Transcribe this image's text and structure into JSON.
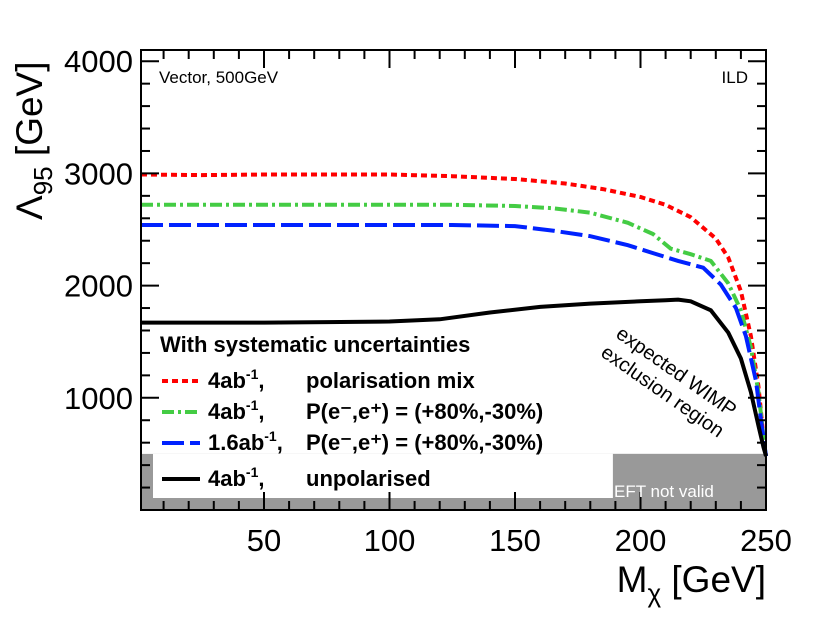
{
  "chart_data": {
    "type": "line",
    "title": "",
    "xlabel": "Mχ [GeV]",
    "ylabel": "Λ95 [GeV]",
    "xlabel_parts": {
      "main": "M",
      "sub": "χ",
      "unit": " [GeV]"
    },
    "ylabel_parts": {
      "main": "Λ",
      "sub": "95",
      "unit": " [GeV]"
    },
    "xlim": [
      1,
      250
    ],
    "ylim": [
      0,
      4100
    ],
    "xticks": [
      50,
      100,
      150,
      200,
      250
    ],
    "yticks": [
      1000,
      2000,
      3000,
      4000
    ],
    "xtick_labels": [
      "50",
      "100",
      "150",
      "200",
      "250"
    ],
    "ytick_labels": [
      "1000",
      "2000",
      "3000",
      "4000"
    ],
    "annotations": {
      "top_left": "Vector, 500GeV",
      "top_right": "ILD",
      "wimp_region_line1": "expected WIMP",
      "wimp_region_line2": "exclusion region",
      "eft_not_valid": "EFT not valid"
    },
    "eft_limit": 500,
    "eft_start_x": 189,
    "legend": {
      "header": "With systematic uncertainties",
      "entries": [
        {
          "lumi": "4ab",
          "lumi_sup": "-1",
          "desc": "polarisation mix"
        },
        {
          "lumi": "4ab",
          "lumi_sup": "-1",
          "desc": "P(e⁻,e⁺) = (+80%,-30%)"
        },
        {
          "lumi": "1.6ab",
          "lumi_sup": "-1",
          "desc": "P(e⁻,e⁺) = (+80%,-30%)"
        },
        {
          "lumi": "4ab",
          "lumi_sup": "-1",
          "desc": "unpolarised"
        }
      ]
    },
    "series": [
      {
        "name": "4ab-1, polarisation mix",
        "color": "#ff0000",
        "x": [
          1,
          25,
          50,
          75,
          100,
          125,
          150,
          170,
          185,
          200,
          210,
          220,
          230,
          235,
          240,
          244,
          247,
          249,
          250
        ],
        "values": [
          2990,
          2985,
          2990,
          2990,
          2990,
          2975,
          2950,
          2910,
          2860,
          2790,
          2720,
          2610,
          2420,
          2250,
          1950,
          1550,
          1100,
          650,
          480
        ]
      },
      {
        "name": "4ab-1, P(e-,e+) = (+80%,-30%)",
        "color": "#44cc44",
        "x": [
          1,
          25,
          50,
          75,
          100,
          125,
          150,
          165,
          180,
          195,
          205,
          212,
          220,
          228,
          235,
          240,
          244,
          247,
          249,
          250
        ],
        "values": [
          2720,
          2720,
          2720,
          2720,
          2720,
          2720,
          2710,
          2690,
          2650,
          2560,
          2460,
          2330,
          2280,
          2220,
          2020,
          1780,
          1450,
          1050,
          650,
          480
        ]
      },
      {
        "name": "1.6ab-1, P(e-,e+) = (+80%,-30%)",
        "color": "#0022ff",
        "x": [
          1,
          25,
          50,
          75,
          100,
          125,
          150,
          165,
          180,
          195,
          205,
          215,
          225,
          232,
          238,
          242,
          246,
          248,
          250
        ],
        "values": [
          2540,
          2540,
          2540,
          2540,
          2540,
          2540,
          2530,
          2490,
          2440,
          2360,
          2290,
          2220,
          2160,
          2010,
          1800,
          1550,
          1150,
          800,
          480
        ]
      },
      {
        "name": "4ab-1, unpolarised",
        "color": "#000000",
        "x": [
          1,
          25,
          50,
          75,
          100,
          120,
          140,
          160,
          180,
          200,
          210,
          215,
          220,
          228,
          235,
          240,
          244,
          247,
          249,
          250
        ],
        "values": [
          1670,
          1670,
          1670,
          1675,
          1680,
          1700,
          1760,
          1810,
          1840,
          1860,
          1870,
          1875,
          1860,
          1780,
          1580,
          1350,
          1050,
          750,
          560,
          480
        ]
      }
    ],
    "colors": {
      "eft_band": "#999999"
    }
  }
}
